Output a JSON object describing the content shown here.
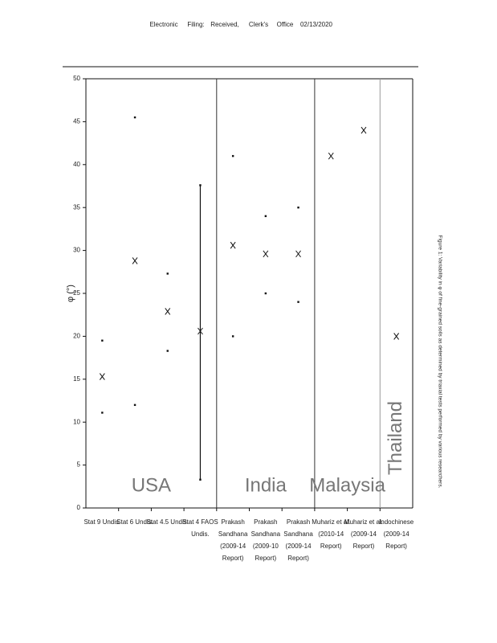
{
  "header": [
    "Electronic",
    "Filing:",
    "Received,",
    "Clerk's",
    "Office",
    "02/13/2020"
  ],
  "caption": "Figure 1: Variability in φ of fine-grained soils as determined by triaxial tests performed by various researchers.",
  "chart_data": {
    "type": "range",
    "ylabel": "φ (°)",
    "ylim": [
      0,
      50
    ],
    "yticks": [
      0,
      5,
      10,
      15,
      20,
      25,
      30,
      35,
      40,
      45,
      50
    ],
    "categories": [
      [
        "Stat 9 Undis."
      ],
      [
        "Stat 6 Undis."
      ],
      [
        "Stat 4.5 Undis."
      ],
      [
        "Stat 4 FAOS",
        "Undis."
      ],
      [
        "Prakash",
        "Sandhana",
        "(2009-14",
        "Report)"
      ],
      [
        "Prakash",
        "Sandhana",
        "(2009-10",
        "Report)"
      ],
      [
        "Prakash",
        "Sandhana",
        "(2009-14",
        "Report)"
      ],
      [
        "Muhariz et al.",
        "(2010-14",
        "Report)"
      ],
      [
        "Muhariz et al.",
        "(2009-14",
        "Report)"
      ],
      [
        "Indochinese",
        "(2009-14",
        "Report)"
      ]
    ],
    "series": [
      {
        "marker": "dot",
        "values": [
          19.5,
          45.5,
          27.3,
          37.6,
          41.0,
          34.0,
          35.0,
          null,
          null,
          null
        ]
      },
      {
        "marker": "cross",
        "values": [
          15.3,
          28.8,
          22.9,
          20.6,
          30.6,
          29.6,
          29.6,
          41.0,
          44.0,
          20.0
        ]
      },
      {
        "marker": "dot",
        "values": [
          11.1,
          12.0,
          18.3,
          3.3,
          20.0,
          25.0,
          24.0,
          null,
          null,
          null
        ]
      }
    ],
    "range_bars": [
      3
    ],
    "color": "#111111",
    "regions": [
      {
        "label": "USA",
        "categories": [
          0,
          3
        ]
      },
      {
        "label": "India",
        "categories": [
          4,
          6
        ]
      },
      {
        "label": "Malaysia",
        "categories": [
          7,
          8
        ]
      },
      {
        "label": "Thailand",
        "categories": [
          9,
          9
        ]
      }
    ]
  }
}
